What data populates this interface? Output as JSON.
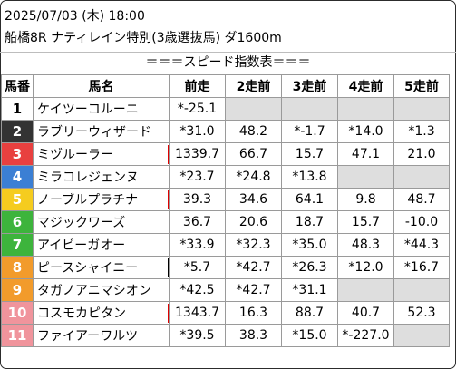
{
  "header": {
    "datetime": "2025/07/03 (木) 18:00",
    "race": "船橋8R ナティレイン特別(3歳選抜馬) ダ1600m"
  },
  "banner": "＝＝＝スピード指数表＝＝＝",
  "columns": [
    "馬番",
    "馬名",
    "前走",
    "2走前",
    "3走前",
    "4走前",
    "5走前"
  ],
  "rows": [
    {
      "num": "1",
      "name": "ケイツーコルーニ",
      "bg": "#ffffff",
      "fg": "#000000",
      "mark": "",
      "vals": [
        "*-25.1",
        "",
        "",
        "",
        ""
      ]
    },
    {
      "num": "2",
      "name": "ラブリーウィザード",
      "bg": "#333333",
      "fg": "#ffffff",
      "mark": "",
      "vals": [
        "*31.0",
        "48.2",
        "*-1.7",
        "*14.0",
        "*1.3"
      ]
    },
    {
      "num": "3",
      "name": "ミヅルーラー",
      "bg": "#e8403f",
      "fg": "#ffffff",
      "mark": "#e00000",
      "vals": [
        "1339.7",
        "66.7",
        "15.7",
        "47.1",
        "21.0"
      ]
    },
    {
      "num": "4",
      "name": "ミラコレジェンヌ",
      "bg": "#3b7fd4",
      "fg": "#ffffff",
      "mark": "",
      "vals": [
        "*23.7",
        "*24.8",
        "*13.8",
        "",
        ""
      ]
    },
    {
      "num": "5",
      "name": "ノーブルプラチナ",
      "bg": "#f5cc1f",
      "fg": "#ffffff",
      "mark": "#e00000",
      "vals": [
        "39.3",
        "34.6",
        "64.1",
        "9.8",
        "48.7"
      ]
    },
    {
      "num": "6",
      "name": "マジックワーズ",
      "bg": "#3db43c",
      "fg": "#ffffff",
      "mark": "",
      "vals": [
        "36.7",
        "20.6",
        "18.7",
        "15.7",
        "-10.0"
      ]
    },
    {
      "num": "7",
      "name": "アイビーガオー",
      "bg": "#3db43c",
      "fg": "#ffffff",
      "mark": "",
      "vals": [
        "*33.9",
        "*32.3",
        "*35.0",
        "48.3",
        "*44.3"
      ]
    },
    {
      "num": "8",
      "name": "ピースシャイニー",
      "bg": "#f29b2b",
      "fg": "#ffffff",
      "mark": "#000000",
      "vals": [
        "*5.7",
        "*42.7",
        "*26.3",
        "*12.0",
        "*16.7"
      ]
    },
    {
      "num": "9",
      "name": "タガノアニマシオン",
      "bg": "#f29b2b",
      "fg": "#ffffff",
      "mark": "",
      "vals": [
        "*42.5",
        "*42.7",
        "*31.1",
        "",
        ""
      ]
    },
    {
      "num": "10",
      "name": "コスモカピタン",
      "bg": "#f0949c",
      "fg": "#ffffff",
      "mark": "#e00000",
      "vals": [
        "1343.7",
        "16.3",
        "88.7",
        "40.7",
        "52.3"
      ]
    },
    {
      "num": "11",
      "name": "ファイアーワルツ",
      "bg": "#f0949c",
      "fg": "#ffffff",
      "mark": "",
      "vals": [
        "*39.5",
        "38.3",
        "*15.0",
        "*-227.0",
        ""
      ]
    }
  ]
}
